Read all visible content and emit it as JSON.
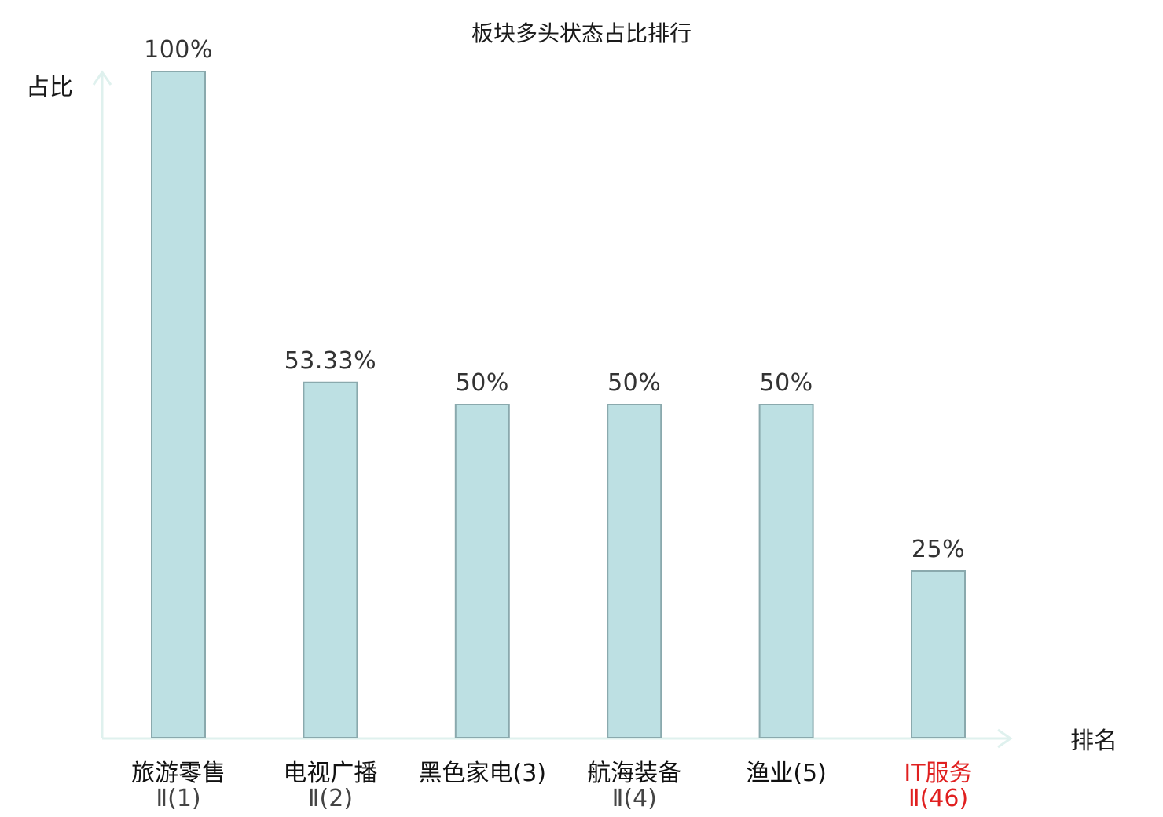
{
  "chart_data": {
    "type": "bar",
    "title": "板块多头状态占比排行",
    "ylabel": "占比",
    "xlabel": "排名",
    "ylim": [
      0,
      100
    ],
    "grid": false,
    "categories": [
      {
        "name": "旅游零售",
        "rank": "Ⅱ(1)",
        "highlight": false
      },
      {
        "name": "电视广播",
        "rank": "Ⅱ(2)",
        "highlight": false
      },
      {
        "name": "黑色家电(3)",
        "rank": "",
        "highlight": false
      },
      {
        "name": "航海装备",
        "rank": "Ⅱ(4)",
        "highlight": false
      },
      {
        "name": "渔业(5)",
        "rank": "",
        "highlight": false
      },
      {
        "name": "IT服务",
        "rank": "Ⅱ(46)",
        "highlight": true
      }
    ],
    "values": [
      100,
      53.33,
      50,
      50,
      50,
      25
    ],
    "value_labels": [
      "100%",
      "53.33%",
      "50%",
      "50%",
      "50%",
      "25%"
    ],
    "colors": {
      "bar_fill": "#bde0e3",
      "bar_stroke": "#8aa9ad",
      "axis": "#dff1ee",
      "highlight": "#e02020"
    }
  }
}
